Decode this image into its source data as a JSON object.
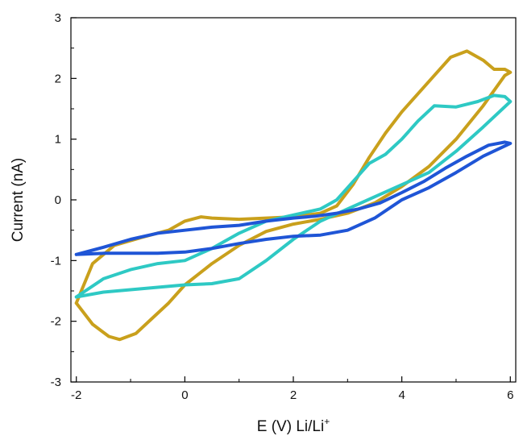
{
  "chart_data": {
    "type": "line",
    "title": "",
    "xlabel": "E (V) Li/Li",
    "xlabel_sup": "+",
    "ylabel": "Current (nA)",
    "xlim": [
      -2.1,
      6.1
    ],
    "ylim": [
      -3,
      3
    ],
    "xticks": [
      -2,
      0,
      2,
      4,
      6
    ],
    "yticks": [
      -3,
      -2,
      -1,
      0,
      1,
      2,
      3
    ],
    "grid": false,
    "legend": "none",
    "series": [
      {
        "color": "#c9a01c",
        "x": [
          -2.0,
          -1.7,
          -1.4,
          -1.2,
          -0.9,
          -0.6,
          -0.3,
          0.0,
          0.5,
          1.0,
          1.5,
          2.0,
          2.5,
          3.0,
          3.5,
          4.0,
          4.5,
          5.0,
          5.5,
          5.9,
          6.0,
          5.9,
          5.7,
          5.5,
          5.2,
          4.9,
          4.6,
          4.3,
          4.0,
          3.7,
          3.4,
          3.1,
          2.8,
          2.5,
          2.0,
          1.5,
          1.0,
          0.5,
          0.3,
          0.0,
          -0.3,
          -0.8,
          -1.3,
          -1.7,
          -2.0
        ],
        "y": [
          -1.7,
          -2.05,
          -2.25,
          -2.3,
          -2.2,
          -1.95,
          -1.7,
          -1.4,
          -1.05,
          -0.75,
          -0.52,
          -0.4,
          -0.32,
          -0.22,
          -0.05,
          0.22,
          0.55,
          1.0,
          1.55,
          2.05,
          2.1,
          2.15,
          2.15,
          2.3,
          2.45,
          2.35,
          2.05,
          1.75,
          1.45,
          1.1,
          0.7,
          0.25,
          -0.1,
          -0.22,
          -0.28,
          -0.3,
          -0.32,
          -0.3,
          -0.28,
          -0.35,
          -0.5,
          -0.62,
          -0.75,
          -1.05,
          -1.7
        ]
      },
      {
        "color": "#2ec9c4",
        "x": [
          -2.0,
          -1.5,
          -1.0,
          -0.5,
          0.0,
          0.5,
          1.0,
          1.5,
          2.0,
          2.5,
          3.0,
          3.5,
          4.0,
          4.5,
          5.0,
          5.5,
          6.0,
          5.9,
          5.7,
          5.4,
          5.0,
          4.6,
          4.3,
          4.0,
          3.7,
          3.4,
          3.1,
          2.8,
          2.5,
          2.0,
          1.5,
          1.0,
          0.5,
          0.0,
          -0.5,
          -1.0,
          -1.5,
          -2.0
        ],
        "y": [
          -1.6,
          -1.52,
          -1.48,
          -1.44,
          -1.4,
          -1.38,
          -1.3,
          -1.0,
          -0.65,
          -0.35,
          -0.15,
          0.05,
          0.25,
          0.45,
          0.8,
          1.2,
          1.62,
          1.7,
          1.72,
          1.62,
          1.53,
          1.55,
          1.3,
          1.0,
          0.75,
          0.6,
          0.3,
          0.0,
          -0.15,
          -0.25,
          -0.35,
          -0.55,
          -0.8,
          -1.0,
          -1.05,
          -1.15,
          -1.3,
          -1.6
        ]
      },
      {
        "color": "#1f55d6",
        "x": [
          -2.0,
          -1.5,
          -1.0,
          -0.5,
          0.0,
          0.5,
          1.0,
          1.5,
          2.0,
          2.5,
          3.0,
          3.5,
          4.0,
          4.5,
          5.0,
          5.5,
          6.0,
          5.9,
          5.6,
          5.2,
          4.8,
          4.4,
          4.0,
          3.6,
          3.2,
          2.8,
          2.4,
          2.0,
          1.5,
          1.0,
          0.5,
          0.0,
          -0.5,
          -1.0,
          -1.5,
          -2.0
        ],
        "y": [
          -0.9,
          -0.88,
          -0.88,
          -0.88,
          -0.86,
          -0.8,
          -0.72,
          -0.65,
          -0.6,
          -0.58,
          -0.5,
          -0.3,
          0.0,
          0.2,
          0.45,
          0.72,
          0.93,
          0.95,
          0.9,
          0.72,
          0.52,
          0.3,
          0.12,
          -0.05,
          -0.15,
          -0.22,
          -0.27,
          -0.3,
          -0.35,
          -0.42,
          -0.45,
          -0.5,
          -0.55,
          -0.65,
          -0.78,
          -0.9
        ]
      }
    ]
  }
}
